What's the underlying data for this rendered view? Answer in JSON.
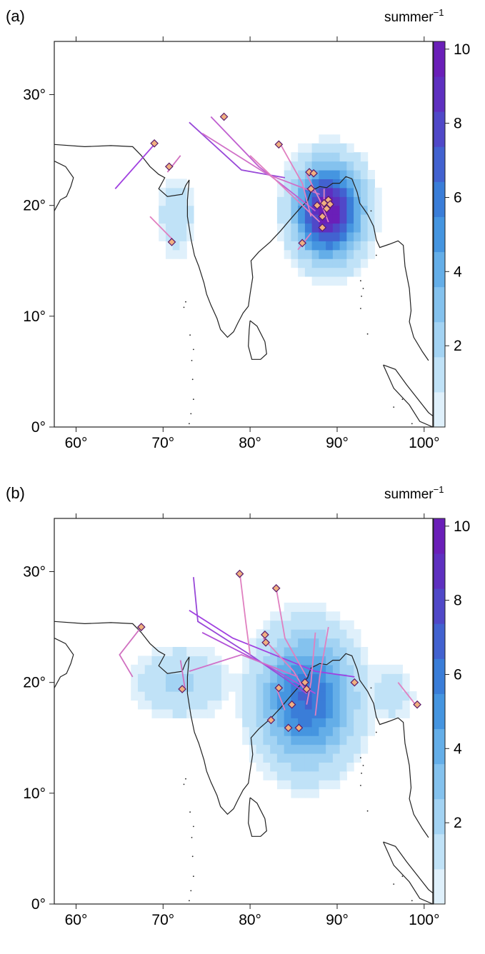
{
  "panels": [
    {
      "label": "(a)",
      "unit": "summer",
      "unit_exp": "−1",
      "x_ticks": [
        "60°",
        "70°",
        "80°",
        "90°",
        "100°"
      ],
      "y_ticks": [
        "0°",
        "10°",
        "20°",
        "30°"
      ],
      "cb_ticks": [
        "2",
        "4",
        "6",
        "8",
        "10"
      ],
      "density_center": {
        "lon": 89.0,
        "lat": 19.5
      },
      "density_peak": 10,
      "tracks": [
        {
          "color": "#a040e0",
          "points": [
            [
              69,
              25.5
            ],
            [
              64.5,
              21.5
            ]
          ]
        },
        {
          "color": "#d070c0",
          "points": [
            [
              72,
              24.5
            ],
            [
              70.5,
              23
            ]
          ]
        },
        {
          "color": "#e080c0",
          "points": [
            [
              68.5,
              19
            ],
            [
              71,
              17
            ]
          ]
        },
        {
          "color": "#9848d8",
          "points": [
            [
              73,
              27.5
            ],
            [
              79,
              23.2
            ],
            [
              84,
              22.5
            ]
          ]
        },
        {
          "color": "#c060d0",
          "points": [
            [
              75.5,
              28
            ],
            [
              81,
              23.5
            ],
            [
              87.5,
              19.5
            ]
          ]
        },
        {
          "color": "#d070c8",
          "points": [
            [
              74.5,
              26.5
            ],
            [
              82,
              22.8
            ],
            [
              88,
              21
            ]
          ]
        },
        {
          "color": "#e080c0",
          "points": [
            [
              80,
              24.5
            ],
            [
              84,
              21.5
            ],
            [
              88,
              18.5
            ]
          ]
        },
        {
          "color": "#e080c0",
          "points": [
            [
              83.5,
              25.5
            ],
            [
              86,
              22
            ],
            [
              87,
              19
            ]
          ]
        },
        {
          "color": "#e080c0",
          "points": [
            [
              86.5,
              22.8
            ],
            [
              88,
              20.5
            ],
            [
              89,
              18.5
            ]
          ]
        },
        {
          "color": "#e080c0",
          "points": [
            [
              88.5,
              21.5
            ],
            [
              88.5,
              19.5
            ]
          ]
        },
        {
          "color": "#e080c0",
          "points": [
            [
              87,
              17.5
            ],
            [
              85.5,
              16
            ]
          ]
        }
      ],
      "genesis": [
        [
          69,
          25.6
        ],
        [
          70.7,
          23.5
        ],
        [
          71,
          16.7
        ],
        [
          77,
          28
        ],
        [
          83.3,
          25.5
        ],
        [
          86.8,
          23
        ],
        [
          87.3,
          22.9
        ],
        [
          88.5,
          20.2
        ],
        [
          87.7,
          20
        ],
        [
          89,
          20.5
        ],
        [
          88.3,
          19
        ],
        [
          89.2,
          20.1
        ],
        [
          88.3,
          18
        ],
        [
          86,
          16.6
        ],
        [
          87,
          21.5
        ],
        [
          88.8,
          19.7
        ]
      ]
    },
    {
      "label": "(b)",
      "unit": "summer",
      "unit_exp": "−1",
      "x_ticks": [
        "60°",
        "70°",
        "80°",
        "90°",
        "100°"
      ],
      "y_ticks": [
        "0°",
        "10°",
        "20°",
        "30°"
      ],
      "cb_ticks": [
        "2",
        "4",
        "6",
        "8",
        "10"
      ],
      "density_center": {
        "lon": 86.5,
        "lat": 18.5
      },
      "density_peak": 6.5,
      "tracks": [
        {
          "color": "#d070c0",
          "points": [
            [
              67.5,
              25
            ],
            [
              65,
              22.5
            ],
            [
              66.5,
              20.5
            ]
          ]
        },
        {
          "color": "#d070c0",
          "points": [
            [
              72.5,
              19.5
            ],
            [
              72,
              22
            ]
          ]
        },
        {
          "color": "#9848d8",
          "points": [
            [
              73.5,
              29.5
            ],
            [
              74,
              25.5
            ],
            [
              80,
              22.5
            ],
            [
              86.5,
              19
            ]
          ]
        },
        {
          "color": "#a040e0",
          "points": [
            [
              73,
              26.5
            ],
            [
              78,
              24
            ],
            [
              87.5,
              21
            ],
            [
              92,
              20.5
            ]
          ]
        },
        {
          "color": "#b050d8",
          "points": [
            [
              74.5,
              24.5
            ],
            [
              82,
              21.5
            ],
            [
              87.5,
              19
            ]
          ]
        },
        {
          "color": "#e080c0",
          "points": [
            [
              78.8,
              30
            ],
            [
              79.5,
              25.5
            ],
            [
              80,
              22.5
            ]
          ]
        },
        {
          "color": "#e080c0",
          "points": [
            [
              83,
              28.5
            ],
            [
              84,
              24
            ],
            [
              86.5,
              20.5
            ]
          ]
        },
        {
          "color": "#e080c0",
          "points": [
            [
              81.5,
              24
            ],
            [
              85,
              21
            ],
            [
              86.5,
              19
            ]
          ]
        },
        {
          "color": "#d070c8",
          "points": [
            [
              73,
              21
            ],
            [
              79,
              22.5
            ],
            [
              85.5,
              20.5
            ]
          ]
        },
        {
          "color": "#e080c0",
          "points": [
            [
              87.5,
              24.5
            ],
            [
              87,
              20
            ],
            [
              86.5,
              18
            ]
          ]
        },
        {
          "color": "#e080c0",
          "points": [
            [
              89,
              25
            ],
            [
              88,
              20.5
            ],
            [
              87.5,
              17
            ]
          ]
        },
        {
          "color": "#e080c0",
          "points": [
            [
              97,
              20
            ],
            [
              99,
              18
            ]
          ]
        },
        {
          "color": "#e080c0",
          "points": [
            [
              83,
              19.5
            ],
            [
              84,
              17.5
            ]
          ]
        }
      ],
      "genesis": [
        [
          67.5,
          25
        ],
        [
          72.2,
          19.4
        ],
        [
          78.8,
          29.8
        ],
        [
          83,
          28.5
        ],
        [
          81.7,
          24.3
        ],
        [
          81.8,
          23.6
        ],
        [
          83.3,
          19.5
        ],
        [
          86.3,
          20
        ],
        [
          86.5,
          19.4
        ],
        [
          84.8,
          18
        ],
        [
          82.4,
          16.6
        ],
        [
          84.4,
          15.9
        ],
        [
          85.6,
          15.9
        ],
        [
          92,
          20
        ],
        [
          99.2,
          18
        ]
      ]
    }
  ],
  "colors": {
    "colorbar_stops": [
      "#dff0fb",
      "#c0e2f7",
      "#a3d3f3",
      "#84c2ee",
      "#64aee8",
      "#4595e0",
      "#3a7dd8",
      "#4262d0",
      "#5048c8",
      "#5e30c0",
      "#6a1fb8"
    ],
    "coast": "#222222",
    "genesis_fill": "#f0b080"
  }
}
